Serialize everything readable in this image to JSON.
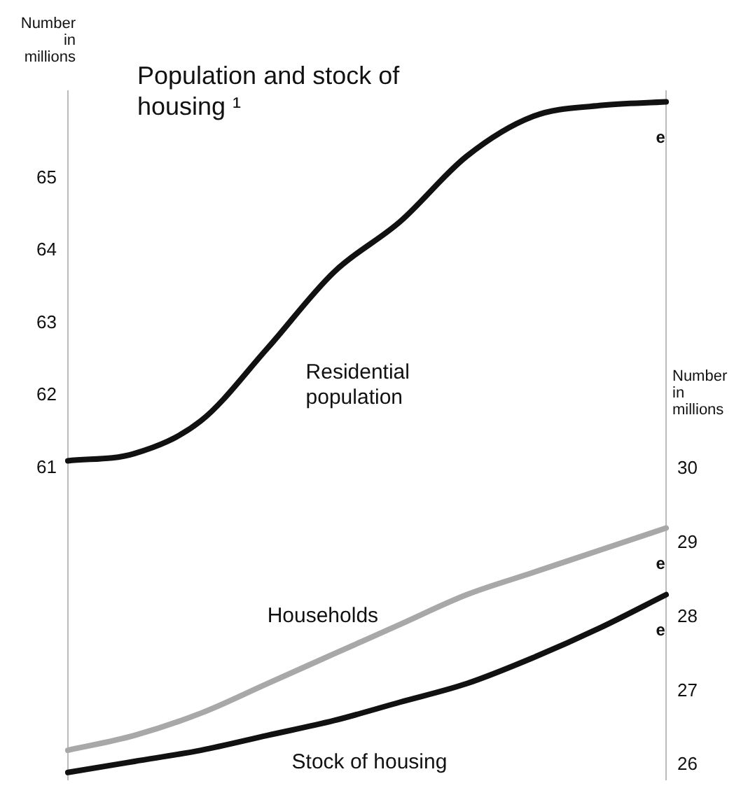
{
  "chart_data": {
    "type": "line",
    "title": "Population and stock of housing ¹",
    "ylabel": "Number in millions",
    "y2label": "Number in millions",
    "categories": [
      null,
      null,
      null,
      null,
      null,
      null,
      null,
      null,
      null,
      null
    ],
    "series": [
      {
        "name": "Residential population",
        "color": "#111111",
        "values": [
          61.1,
          61.2,
          61.65,
          62.65,
          63.7,
          64.4,
          65.3,
          65.85,
          66.0,
          66.05
        ]
      },
      {
        "name": "Households",
        "color": "#a8a8a8",
        "axis": "y2",
        "values": [
          26.2,
          26.4,
          26.7,
          27.1,
          27.5,
          27.9,
          28.3,
          28.6,
          28.9,
          29.2
        ]
      },
      {
        "name": "Stock of housing",
        "color": "#111111",
        "axis": "y2",
        "values": [
          25.9,
          26.05,
          26.2,
          26.4,
          26.6,
          26.85,
          27.1,
          27.45,
          27.85,
          28.3
        ]
      }
    ],
    "ylim": [
      56.7,
      66.2
    ],
    "yticks": [
      61,
      62,
      63,
      64,
      65
    ],
    "y2lim": [
      25.8,
      35.1
    ],
    "y2ticks": [
      26,
      27,
      28,
      29,
      30
    ],
    "annotations": [
      "e",
      "e",
      "e"
    ],
    "tick_labels": "y",
    "grid": false,
    "legend": false,
    "marker": "none",
    "line_style": "solid"
  }
}
